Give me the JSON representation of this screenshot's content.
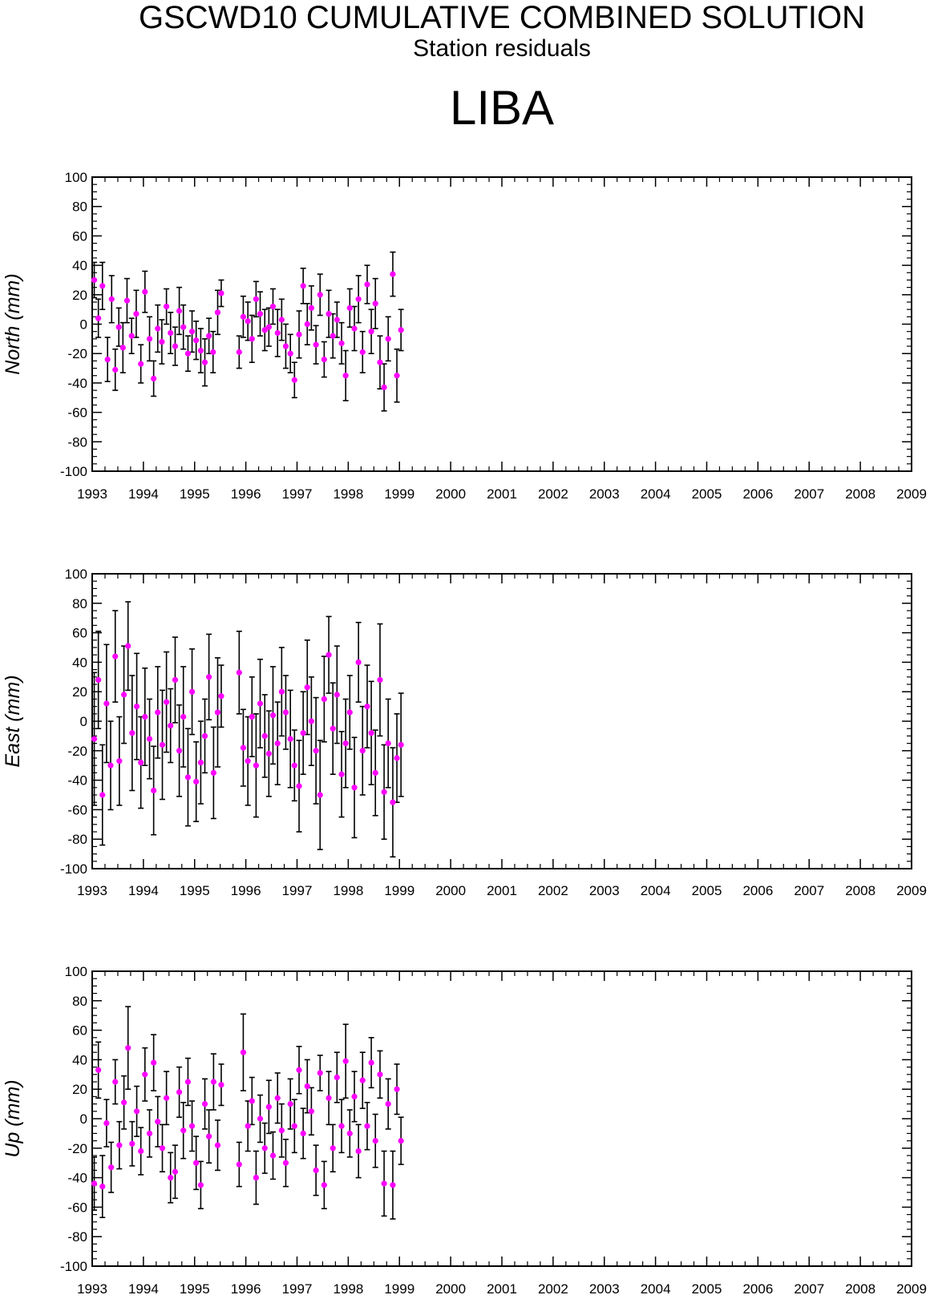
{
  "header": {
    "title": "GSCWD10 CUMULATIVE COMBINED SOLUTION",
    "subtitle": "Station residuals",
    "station": "LIBA"
  },
  "colors": {
    "point": "#ff00ff",
    "errorbar": "#000000",
    "frame": "#000000"
  },
  "chart_data": [
    {
      "type": "scatter",
      "ylabel": "North (mm)",
      "xlim": [
        1993,
        2009
      ],
      "ylim": [
        -100,
        100
      ],
      "x_ticks": [
        "1993",
        "1994",
        "1995",
        "1996",
        "1997",
        "1998",
        "1999",
        "2000",
        "2001",
        "2002",
        "2003",
        "2004",
        "2005",
        "2006",
        "2007",
        "2008",
        "2009"
      ],
      "y_ticks": [
        "100",
        "80",
        "60",
        "40",
        "20",
        "0",
        "-20",
        "-40",
        "-60",
        "-80",
        "-100"
      ],
      "series": [
        {
          "x": [
            1993.04,
            1993.12,
            1993.2,
            1993.3,
            1993.38,
            1993.45,
            1993.52,
            1993.6,
            1993.68,
            1993.77,
            1993.86,
            1993.95,
            1994.03,
            1994.12,
            1994.2,
            1994.28,
            1994.36,
            1994.45,
            1994.53,
            1994.62,
            1994.7,
            1994.78,
            1994.87,
            1994.95,
            1995.03,
            1995.12,
            1995.2,
            1995.28,
            1995.36,
            1995.45,
            1995.52,
            1995.87,
            1995.95,
            1996.04,
            1996.12,
            1996.2,
            1996.28,
            1996.37,
            1996.45,
            1996.53,
            1996.62,
            1996.7,
            1996.78,
            1996.87,
            1996.95,
            1997.04,
            1997.12,
            1997.2,
            1997.28,
            1997.37,
            1997.45,
            1997.53,
            1997.62,
            1997.7,
            1997.78,
            1997.87,
            1997.95,
            1998.03,
            1998.12,
            1998.2,
            1998.28,
            1998.37,
            1998.45,
            1998.53,
            1998.62,
            1998.7,
            1998.78,
            1998.87,
            1998.95,
            1999.03
          ],
          "y": [
            30,
            4,
            26,
            -24,
            17,
            -31,
            -2,
            -16,
            16,
            -8,
            7,
            -27,
            22,
            -10,
            -37,
            -3,
            -12,
            12,
            -6,
            -15,
            9,
            -2,
            -20,
            -5,
            -11,
            -18,
            -26,
            -8,
            -19,
            8,
            21,
            -19,
            5,
            2,
            -10,
            17,
            7,
            -4,
            -2,
            12,
            -6,
            3,
            -15,
            -20,
            -38,
            -7,
            26,
            0,
            11,
            -14,
            20,
            -24,
            7,
            -8,
            3,
            -13,
            -35,
            11,
            -3,
            17,
            -19,
            27,
            -5,
            14,
            -26,
            -43,
            -10,
            34,
            -35,
            -4
          ],
          "err": [
            12,
            13,
            16,
            15,
            16,
            14,
            13,
            17,
            15,
            12,
            16,
            13,
            14,
            15,
            12,
            16,
            15,
            12,
            14,
            13,
            16,
            15,
            12,
            14,
            13,
            15,
            16,
            12,
            14,
            15,
            9,
            11,
            14,
            13,
            16,
            12,
            15,
            14,
            13,
            12,
            16,
            14,
            15,
            13,
            12,
            16,
            12,
            14,
            15,
            13,
            14,
            12,
            16,
            15,
            12,
            14,
            17,
            13,
            15,
            16,
            14,
            13,
            15,
            17,
            18,
            16,
            15,
            15,
            18,
            14
          ]
        }
      ]
    },
    {
      "type": "scatter",
      "ylabel": "East (mm)",
      "xlim": [
        1993,
        2009
      ],
      "ylim": [
        -100,
        100
      ],
      "x_ticks": [
        "1993",
        "1994",
        "1995",
        "1996",
        "1997",
        "1998",
        "1999",
        "2000",
        "2001",
        "2002",
        "2003",
        "2004",
        "2005",
        "2006",
        "2007",
        "2008",
        "2009"
      ],
      "y_ticks": [
        "100",
        "80",
        "60",
        "40",
        "20",
        "0",
        "-20",
        "-40",
        "-60",
        "-80",
        "-100"
      ],
      "series": [
        {
          "x": [
            1993.04,
            1993.12,
            1993.2,
            1993.28,
            1993.36,
            1993.45,
            1993.53,
            1993.62,
            1993.7,
            1993.78,
            1993.87,
            1993.95,
            1994.03,
            1994.12,
            1994.2,
            1994.28,
            1994.37,
            1994.45,
            1994.53,
            1994.62,
            1994.7,
            1994.78,
            1994.87,
            1994.95,
            1995.03,
            1995.12,
            1995.2,
            1995.28,
            1995.37,
            1995.45,
            1995.52,
            1995.87,
            1995.95,
            1996.04,
            1996.12,
            1996.2,
            1996.28,
            1996.37,
            1996.45,
            1996.53,
            1996.62,
            1996.7,
            1996.78,
            1996.87,
            1996.95,
            1997.04,
            1997.12,
            1997.2,
            1997.28,
            1997.37,
            1997.45,
            1997.53,
            1997.62,
            1997.7,
            1997.78,
            1997.87,
            1997.95,
            1998.03,
            1998.12,
            1998.2,
            1998.28,
            1998.37,
            1998.45,
            1998.53,
            1998.62,
            1998.7,
            1998.78,
            1998.87,
            1998.95,
            1999.03
          ],
          "y": [
            -12,
            28,
            -50,
            12,
            -30,
            44,
            -27,
            18,
            51,
            -8,
            10,
            -28,
            3,
            -12,
            -47,
            6,
            -16,
            13,
            -3,
            28,
            -20,
            3,
            -38,
            20,
            -41,
            -28,
            -10,
            30,
            -35,
            6,
            17,
            33,
            -18,
            -27,
            3,
            -30,
            12,
            -10,
            -22,
            4,
            -15,
            20,
            6,
            -12,
            -30,
            -44,
            -8,
            23,
            0,
            -20,
            -50,
            15,
            45,
            -5,
            18,
            -36,
            -15,
            6,
            -45,
            40,
            -20,
            10,
            -8,
            -35,
            28,
            -48,
            -15,
            -55,
            -25,
            -16
          ],
          "err": [
            45,
            33,
            34,
            40,
            30,
            31,
            30,
            33,
            30,
            39,
            36,
            31,
            33,
            27,
            30,
            31,
            37,
            34,
            25,
            29,
            31,
            34,
            33,
            29,
            27,
            28,
            25,
            29,
            31,
            37,
            21,
            28,
            26,
            30,
            27,
            35,
            30,
            28,
            29,
            33,
            28,
            30,
            25,
            33,
            24,
            31,
            28,
            32,
            30,
            36,
            37,
            29,
            26,
            31,
            33,
            29,
            30,
            25,
            34,
            27,
            30,
            28,
            35,
            29,
            38,
            32,
            30,
            37,
            30,
            35
          ]
        }
      ]
    },
    {
      "type": "scatter",
      "ylabel": "Up (mm)",
      "xlim": [
        1993,
        2009
      ],
      "ylim": [
        -100,
        100
      ],
      "x_ticks": [
        "1993",
        "1994",
        "1995",
        "1996",
        "1997",
        "1998",
        "1999",
        "2000",
        "2001",
        "2002",
        "2003",
        "2004",
        "2005",
        "2006",
        "2007",
        "2008",
        "2009"
      ],
      "y_ticks": [
        "100",
        "80",
        "60",
        "40",
        "20",
        "0",
        "-20",
        "-40",
        "-60",
        "-80",
        "-100"
      ],
      "series": [
        {
          "x": [
            1993.04,
            1993.12,
            1993.2,
            1993.28,
            1993.37,
            1993.45,
            1993.53,
            1993.62,
            1993.7,
            1993.78,
            1993.87,
            1993.95,
            1994.03,
            1994.12,
            1994.2,
            1994.28,
            1994.37,
            1994.45,
            1994.53,
            1994.62,
            1994.7,
            1994.78,
            1994.87,
            1994.95,
            1995.03,
            1995.12,
            1995.2,
            1995.28,
            1995.37,
            1995.45,
            1995.52,
            1995.87,
            1995.95,
            1996.04,
            1996.12,
            1996.2,
            1996.28,
            1996.37,
            1996.45,
            1996.53,
            1996.62,
            1996.7,
            1996.78,
            1996.87,
            1996.95,
            1997.04,
            1997.12,
            1997.2,
            1997.28,
            1997.37,
            1997.45,
            1997.53,
            1997.62,
            1997.7,
            1997.78,
            1997.87,
            1997.95,
            1998.03,
            1998.12,
            1998.2,
            1998.28,
            1998.37,
            1998.45,
            1998.53,
            1998.62,
            1998.7,
            1998.78,
            1998.87,
            1998.95,
            1999.03
          ],
          "y": [
            -44,
            33,
            -46,
            -3,
            -33,
            25,
            -18,
            11,
            48,
            -17,
            5,
            -22,
            30,
            -10,
            38,
            -2,
            -20,
            14,
            -40,
            -36,
            18,
            -8,
            25,
            -5,
            -30,
            -45,
            10,
            -12,
            25,
            -18,
            23,
            -31,
            45,
            -5,
            12,
            -40,
            0,
            -20,
            8,
            -25,
            14,
            -8,
            -30,
            10,
            -5,
            33,
            -10,
            22,
            5,
            -35,
            31,
            -45,
            14,
            -20,
            28,
            -5,
            39,
            -10,
            15,
            -22,
            26,
            -5,
            38,
            -15,
            30,
            -44,
            10,
            -45,
            20,
            -15
          ],
          "err": [
            18,
            19,
            21,
            16,
            17,
            15,
            16,
            18,
            28,
            15,
            17,
            16,
            18,
            16,
            19,
            17,
            16,
            18,
            17,
            18,
            17,
            19,
            16,
            17,
            18,
            16,
            17,
            18,
            19,
            17,
            14,
            15,
            26,
            17,
            16,
            18,
            16,
            17,
            18,
            16,
            17,
            18,
            16,
            17,
            18,
            16,
            17,
            18,
            16,
            17,
            12,
            16,
            18,
            16,
            17,
            18,
            25,
            16,
            17,
            18,
            19,
            16,
            17,
            18,
            16,
            22,
            17,
            23,
            17,
            16
          ]
        }
      ]
    }
  ]
}
